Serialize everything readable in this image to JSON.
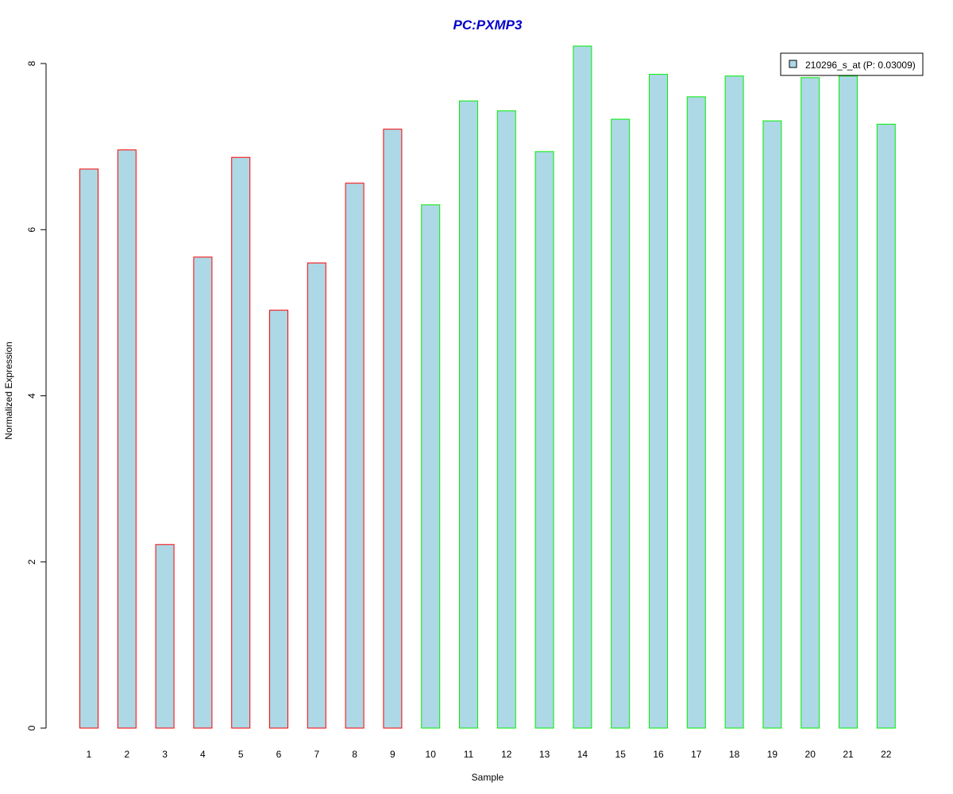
{
  "chart_data": {
    "type": "bar",
    "title": "PC:PXMP3",
    "title_color": "#0000cc",
    "xlabel": "Sample",
    "ylabel": "Normalized Expression",
    "ylim": [
      0,
      8.2
    ],
    "y_ticks": [
      0,
      2,
      4,
      6,
      8
    ],
    "grid": false,
    "categories": [
      "1",
      "2",
      "3",
      "4",
      "5",
      "6",
      "7",
      "8",
      "9",
      "10",
      "11",
      "12",
      "13",
      "14",
      "15",
      "16",
      "17",
      "18",
      "19",
      "20",
      "21",
      "22"
    ],
    "series": [
      {
        "name": "210296_s_at (P: 0.03009)",
        "values": [
          6.73,
          6.96,
          2.21,
          5.67,
          6.87,
          5.03,
          5.6,
          6.56,
          7.21,
          6.3,
          7.55,
          7.43,
          6.94,
          8.21,
          7.33,
          7.87,
          7.6,
          7.85,
          7.31,
          7.83,
          7.85,
          7.27
        ],
        "groups": [
          "a",
          "a",
          "a",
          "a",
          "a",
          "a",
          "a",
          "a",
          "a",
          "b",
          "b",
          "b",
          "b",
          "b",
          "b",
          "b",
          "b",
          "b",
          "b",
          "b",
          "b",
          "b"
        ]
      }
    ],
    "fill_color": "#add8e6",
    "group_border_colors": {
      "a": "#ff0000",
      "b": "#00ee00"
    },
    "legend": {
      "position": "top-right",
      "entries": [
        "210296_s_at (P: 0.03009)"
      ]
    }
  }
}
